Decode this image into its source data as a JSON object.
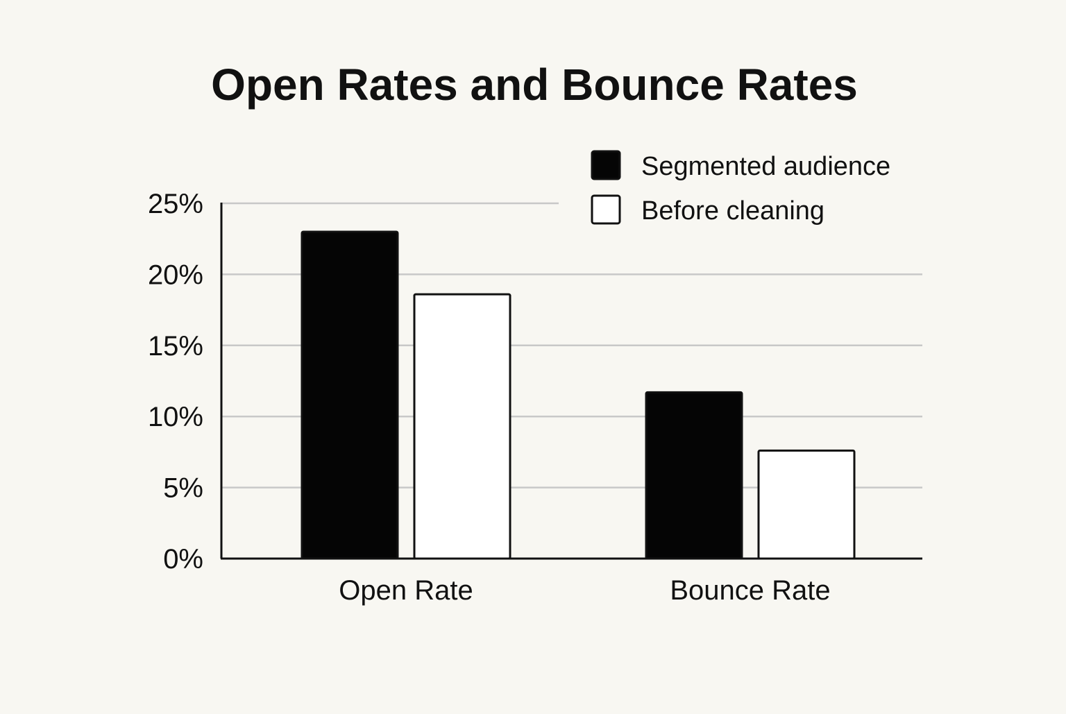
{
  "chart_data": {
    "type": "bar",
    "title": "Open Rates and Bounce Rates",
    "xlabel": "",
    "ylabel": "",
    "categories": [
      "Open Rate",
      "Bounce Rate"
    ],
    "series": [
      {
        "name": "Segmented audience",
        "values": [
          23,
          11.7
        ],
        "fill": "#050505"
      },
      {
        "name": "Before cleaning",
        "values": [
          18.6,
          7.6
        ],
        "fill": "#ffffff"
      }
    ],
    "ylim": [
      0,
      25
    ],
    "yticks": [
      0,
      5,
      10,
      15,
      20,
      25
    ],
    "ytick_labels": [
      "0%",
      "5%",
      "10%",
      "15%",
      "20%",
      "25%"
    ],
    "grid": true,
    "legend_position": "top-right"
  },
  "colors": {
    "background": "#f8f7f2",
    "text": "#111111",
    "grid": "#c8c8c8"
  }
}
